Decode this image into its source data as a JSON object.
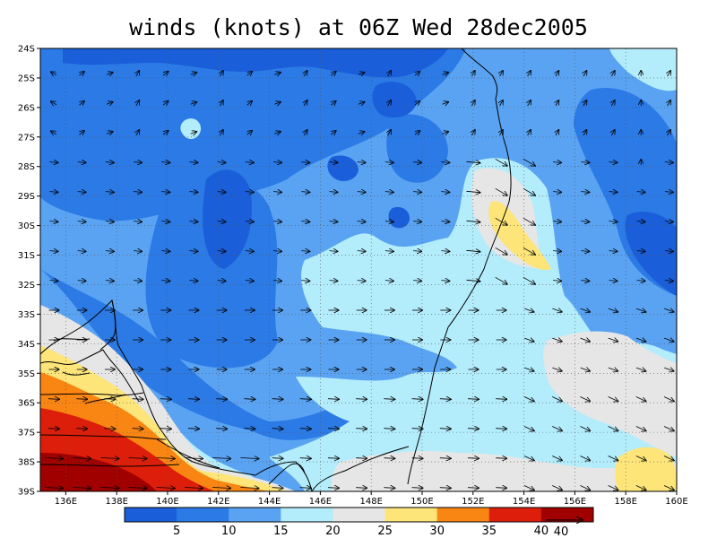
{
  "title": "winds (knots) at 06Z Wed 28dec2005",
  "lat_labels": [
    "24S",
    "25S",
    "26S",
    "27S",
    "28S",
    "29S",
    "30S",
    "31S",
    "32S",
    "33S",
    "34S",
    "35S",
    "36S",
    "37S",
    "38S",
    "39S"
  ],
  "lon_labels": [
    "136E",
    "138E",
    "140E",
    "142E",
    "144E",
    "146E",
    "148E",
    "150E",
    "152E",
    "154E",
    "156E",
    "158E",
    "160E"
  ],
  "colorbar": {
    "colors": [
      "#1a5fd9",
      "#2b7ae6",
      "#59a3f2",
      "#b3ecfb",
      "#e6e6e6",
      "#fde57a",
      "#f98513",
      "#dc1e0a",
      "#a00000"
    ],
    "labels": [
      "5",
      "10",
      "15",
      "20",
      "25",
      "30",
      "35",
      "40"
    ]
  },
  "reference_vector": {
    "label": "40"
  },
  "colors": {
    "band_lt5": "#1a5fd9",
    "band_5_10": "#2b7ae6",
    "band_10_15": "#59a3f2",
    "band_15_20": "#b3ecfb",
    "band_20_25": "#e6e6e6",
    "band_25_30": "#fde57a",
    "band_30_35": "#f98513",
    "band_35_40": "#dc1e0a",
    "band_gt40": "#a00000"
  },
  "chart_data": {
    "type": "heatmap",
    "title": "winds (knots) at 06Z Wed 28dec2005",
    "x_ticks": [
      "136E",
      "138E",
      "140E",
      "142E",
      "144E",
      "146E",
      "148E",
      "150E",
      "152E",
      "154E",
      "156E",
      "158E",
      "160E"
    ],
    "y_ticks": [
      "24S",
      "25S",
      "26S",
      "27S",
      "28S",
      "29S",
      "30S",
      "31S",
      "32S",
      "33S",
      "34S",
      "35S",
      "36S",
      "37S",
      "38S",
      "39S"
    ],
    "xlim": [
      135,
      160
    ],
    "ylim": [
      -39,
      -24
    ],
    "grid": true,
    "contour_levels": [
      5,
      10,
      15,
      20,
      25,
      30,
      35,
      40
    ],
    "overlay": "wind vectors"
  }
}
